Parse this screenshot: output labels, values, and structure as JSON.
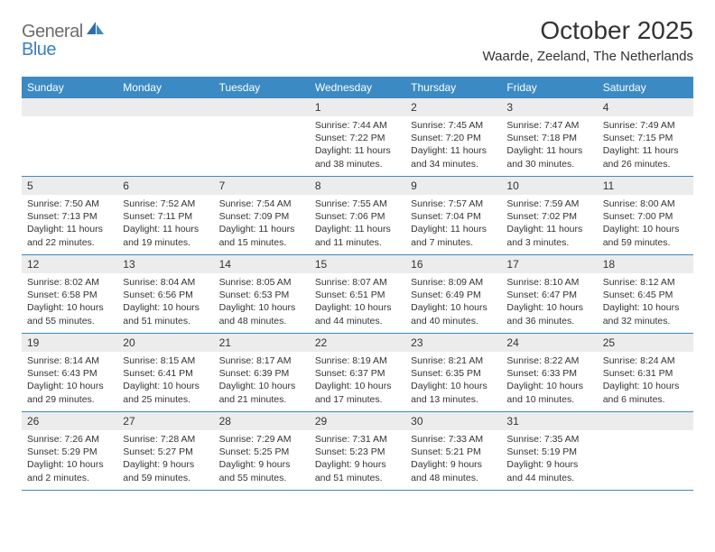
{
  "logo": {
    "text1": "General",
    "text2": "Blue"
  },
  "title": "October 2025",
  "location": "Waarde, Zeeland, The Netherlands",
  "weekdays": [
    "Sunday",
    "Monday",
    "Tuesday",
    "Wednesday",
    "Thursday",
    "Friday",
    "Saturday"
  ],
  "colors": {
    "header_bg": "#3b8ac4",
    "daynum_bg": "#ececec",
    "text": "#333333",
    "logo_gray": "#6d6d6d",
    "logo_blue": "#3b7fc4",
    "page_bg": "#ffffff"
  },
  "weeks": [
    [
      {
        "num": "",
        "lines": []
      },
      {
        "num": "",
        "lines": []
      },
      {
        "num": "",
        "lines": []
      },
      {
        "num": "1",
        "lines": [
          "Sunrise: 7:44 AM",
          "Sunset: 7:22 PM",
          "Daylight: 11 hours",
          "and 38 minutes."
        ]
      },
      {
        "num": "2",
        "lines": [
          "Sunrise: 7:45 AM",
          "Sunset: 7:20 PM",
          "Daylight: 11 hours",
          "and 34 minutes."
        ]
      },
      {
        "num": "3",
        "lines": [
          "Sunrise: 7:47 AM",
          "Sunset: 7:18 PM",
          "Daylight: 11 hours",
          "and 30 minutes."
        ]
      },
      {
        "num": "4",
        "lines": [
          "Sunrise: 7:49 AM",
          "Sunset: 7:15 PM",
          "Daylight: 11 hours",
          "and 26 minutes."
        ]
      }
    ],
    [
      {
        "num": "5",
        "lines": [
          "Sunrise: 7:50 AM",
          "Sunset: 7:13 PM",
          "Daylight: 11 hours",
          "and 22 minutes."
        ]
      },
      {
        "num": "6",
        "lines": [
          "Sunrise: 7:52 AM",
          "Sunset: 7:11 PM",
          "Daylight: 11 hours",
          "and 19 minutes."
        ]
      },
      {
        "num": "7",
        "lines": [
          "Sunrise: 7:54 AM",
          "Sunset: 7:09 PM",
          "Daylight: 11 hours",
          "and 15 minutes."
        ]
      },
      {
        "num": "8",
        "lines": [
          "Sunrise: 7:55 AM",
          "Sunset: 7:06 PM",
          "Daylight: 11 hours",
          "and 11 minutes."
        ]
      },
      {
        "num": "9",
        "lines": [
          "Sunrise: 7:57 AM",
          "Sunset: 7:04 PM",
          "Daylight: 11 hours",
          "and 7 minutes."
        ]
      },
      {
        "num": "10",
        "lines": [
          "Sunrise: 7:59 AM",
          "Sunset: 7:02 PM",
          "Daylight: 11 hours",
          "and 3 minutes."
        ]
      },
      {
        "num": "11",
        "lines": [
          "Sunrise: 8:00 AM",
          "Sunset: 7:00 PM",
          "Daylight: 10 hours",
          "and 59 minutes."
        ]
      }
    ],
    [
      {
        "num": "12",
        "lines": [
          "Sunrise: 8:02 AM",
          "Sunset: 6:58 PM",
          "Daylight: 10 hours",
          "and 55 minutes."
        ]
      },
      {
        "num": "13",
        "lines": [
          "Sunrise: 8:04 AM",
          "Sunset: 6:56 PM",
          "Daylight: 10 hours",
          "and 51 minutes."
        ]
      },
      {
        "num": "14",
        "lines": [
          "Sunrise: 8:05 AM",
          "Sunset: 6:53 PM",
          "Daylight: 10 hours",
          "and 48 minutes."
        ]
      },
      {
        "num": "15",
        "lines": [
          "Sunrise: 8:07 AM",
          "Sunset: 6:51 PM",
          "Daylight: 10 hours",
          "and 44 minutes."
        ]
      },
      {
        "num": "16",
        "lines": [
          "Sunrise: 8:09 AM",
          "Sunset: 6:49 PM",
          "Daylight: 10 hours",
          "and 40 minutes."
        ]
      },
      {
        "num": "17",
        "lines": [
          "Sunrise: 8:10 AM",
          "Sunset: 6:47 PM",
          "Daylight: 10 hours",
          "and 36 minutes."
        ]
      },
      {
        "num": "18",
        "lines": [
          "Sunrise: 8:12 AM",
          "Sunset: 6:45 PM",
          "Daylight: 10 hours",
          "and 32 minutes."
        ]
      }
    ],
    [
      {
        "num": "19",
        "lines": [
          "Sunrise: 8:14 AM",
          "Sunset: 6:43 PM",
          "Daylight: 10 hours",
          "and 29 minutes."
        ]
      },
      {
        "num": "20",
        "lines": [
          "Sunrise: 8:15 AM",
          "Sunset: 6:41 PM",
          "Daylight: 10 hours",
          "and 25 minutes."
        ]
      },
      {
        "num": "21",
        "lines": [
          "Sunrise: 8:17 AM",
          "Sunset: 6:39 PM",
          "Daylight: 10 hours",
          "and 21 minutes."
        ]
      },
      {
        "num": "22",
        "lines": [
          "Sunrise: 8:19 AM",
          "Sunset: 6:37 PM",
          "Daylight: 10 hours",
          "and 17 minutes."
        ]
      },
      {
        "num": "23",
        "lines": [
          "Sunrise: 8:21 AM",
          "Sunset: 6:35 PM",
          "Daylight: 10 hours",
          "and 13 minutes."
        ]
      },
      {
        "num": "24",
        "lines": [
          "Sunrise: 8:22 AM",
          "Sunset: 6:33 PM",
          "Daylight: 10 hours",
          "and 10 minutes."
        ]
      },
      {
        "num": "25",
        "lines": [
          "Sunrise: 8:24 AM",
          "Sunset: 6:31 PM",
          "Daylight: 10 hours",
          "and 6 minutes."
        ]
      }
    ],
    [
      {
        "num": "26",
        "lines": [
          "Sunrise: 7:26 AM",
          "Sunset: 5:29 PM",
          "Daylight: 10 hours",
          "and 2 minutes."
        ]
      },
      {
        "num": "27",
        "lines": [
          "Sunrise: 7:28 AM",
          "Sunset: 5:27 PM",
          "Daylight: 9 hours",
          "and 59 minutes."
        ]
      },
      {
        "num": "28",
        "lines": [
          "Sunrise: 7:29 AM",
          "Sunset: 5:25 PM",
          "Daylight: 9 hours",
          "and 55 minutes."
        ]
      },
      {
        "num": "29",
        "lines": [
          "Sunrise: 7:31 AM",
          "Sunset: 5:23 PM",
          "Daylight: 9 hours",
          "and 51 minutes."
        ]
      },
      {
        "num": "30",
        "lines": [
          "Sunrise: 7:33 AM",
          "Sunset: 5:21 PM",
          "Daylight: 9 hours",
          "and 48 minutes."
        ]
      },
      {
        "num": "31",
        "lines": [
          "Sunrise: 7:35 AM",
          "Sunset: 5:19 PM",
          "Daylight: 9 hours",
          "and 44 minutes."
        ]
      },
      {
        "num": "",
        "lines": []
      }
    ]
  ]
}
